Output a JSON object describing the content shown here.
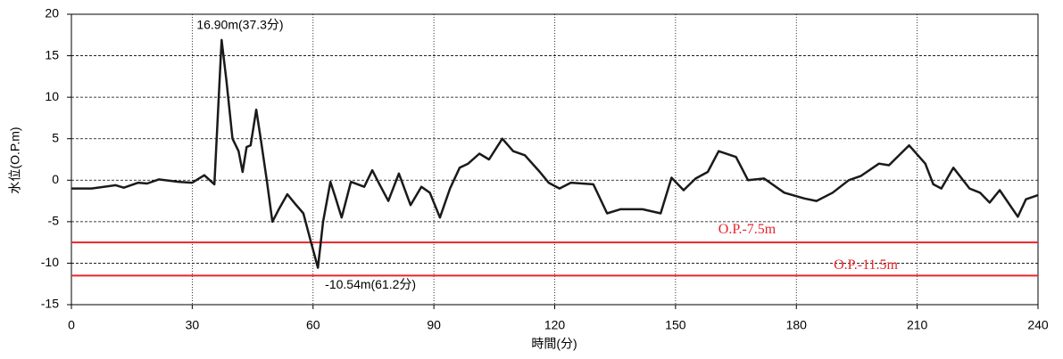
{
  "chart_data": {
    "type": "line",
    "x_label": "時間(分)",
    "y_label": "水位(O.P.m)",
    "x": [
      0,
      5,
      11,
      13,
      16.6,
      18.8,
      21.7,
      26.6,
      30,
      33,
      35.5,
      37.3,
      38.5,
      40,
      41.5,
      42.5,
      43.5,
      44.5,
      45.9,
      47,
      48.5,
      49.9,
      51.5,
      53.6,
      55.5,
      57.6,
      59.5,
      61.2,
      62.5,
      64.3,
      65.5,
      67.1,
      69.4,
      72.7,
      74.7,
      76.5,
      78.7,
      81.3,
      84.2,
      86.9,
      89,
      91.5,
      94,
      96.4,
      98.5,
      101.3,
      103.7,
      107,
      109.7,
      112.6,
      116.3,
      118.5,
      121.2,
      124,
      129.6,
      133,
      136.3,
      141.8,
      146.3,
      149,
      152,
      155,
      158,
      160.7,
      165,
      168,
      172,
      177,
      182,
      185,
      189,
      193,
      196,
      200.5,
      203,
      208,
      212,
      214,
      216,
      219,
      223,
      225.6,
      228,
      230.5,
      235,
      237,
      240
    ],
    "series": [
      {
        "name": "水位",
        "color": "#1a1a1a",
        "values": [
          -1,
          -1,
          -0.6,
          -0.9,
          -0.3,
          -0.4,
          0.1,
          -0.2,
          -0.3,
          0.6,
          -0.5,
          16.9,
          12,
          5,
          3.5,
          1,
          4,
          4.2,
          8.5,
          5,
          0,
          -5,
          -3.5,
          -1.7,
          -2.8,
          -4,
          -7.5,
          -10.54,
          -5,
          -0.2,
          -2,
          -4.5,
          -0.2,
          -0.8,
          1.2,
          -0.5,
          -2.5,
          0.8,
          -3,
          -0.8,
          -1.5,
          -4.5,
          -1,
          1.5,
          2,
          3.2,
          2.5,
          5,
          3.5,
          3,
          1,
          -0.3,
          -1,
          -0.3,
          -0.5,
          -4,
          -3.5,
          -3.5,
          -4,
          0.3,
          -1.2,
          0.2,
          1,
          3.5,
          2.8,
          0,
          0.2,
          -1.5,
          -2.2,
          -2.5,
          -1.5,
          0,
          0.5,
          2,
          1.8,
          4.2,
          2,
          -0.5,
          -1,
          1.5,
          -1,
          -1.5,
          -2.7,
          -1.2,
          -4.4,
          -2.3,
          -1.8
        ]
      }
    ],
    "xlim": [
      0,
      240
    ],
    "xticks": [
      0,
      30,
      60,
      90,
      120,
      150,
      180,
      210,
      240
    ],
    "ylim": [
      -15,
      20
    ],
    "yticks": [
      -15,
      -10,
      -5,
      0,
      5,
      10,
      15,
      20
    ],
    "grid": true,
    "reference_lines": [
      {
        "value": -7.5,
        "label": "O.P.-7.5m",
        "color": "#e8262a"
      },
      {
        "value": -11.5,
        "label": "O.P.-11.5m",
        "color": "#e8262a"
      }
    ],
    "annotations": [
      {
        "text": "16.90m(37.3分)",
        "x": 37.3,
        "y": 16.9
      },
      {
        "text": "-10.54m(61.2分)",
        "x": 61.2,
        "y": -10.54
      }
    ]
  }
}
